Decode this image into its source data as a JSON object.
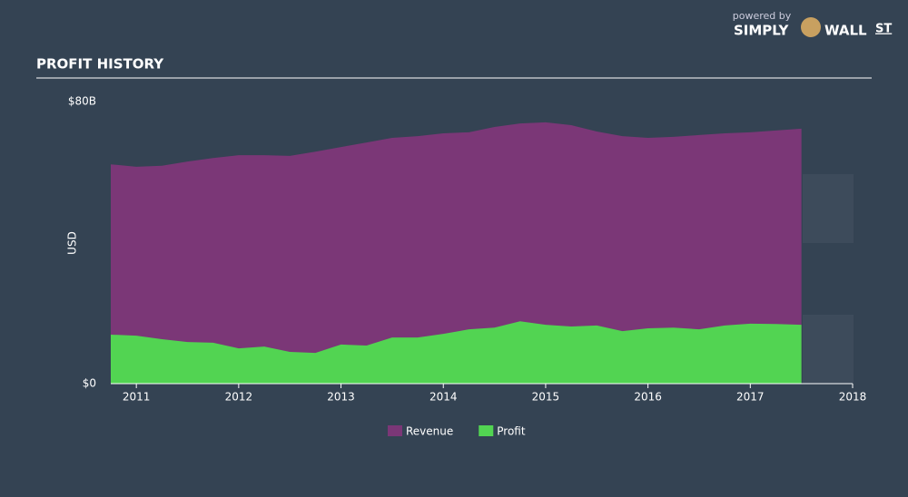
{
  "brand": {
    "powered": "powered by",
    "simply": "SIMPLY",
    "wall": "WALL",
    "st": "ST"
  },
  "chart_data": {
    "type": "area",
    "title": "PROFIT HISTORY",
    "ylabel": "USD",
    "x": [
      2010.75,
      2011.0,
      2011.25,
      2011.5,
      2011.75,
      2012.0,
      2012.25,
      2012.5,
      2012.75,
      2013.0,
      2013.25,
      2013.5,
      2013.75,
      2014.0,
      2014.25,
      2014.5,
      2014.75,
      2015.0,
      2015.25,
      2015.5,
      2015.75,
      2016.0,
      2016.25,
      2016.5,
      2016.75,
      2017.0,
      2017.25,
      2017.5
    ],
    "series": [
      {
        "name": "Revenue",
        "color": "#7b3777",
        "values": [
          62.2,
          61.5,
          61.8,
          63.0,
          64.0,
          64.8,
          64.8,
          64.6,
          65.8,
          67.1,
          68.4,
          69.7,
          70.2,
          71.0,
          71.3,
          72.8,
          73.8,
          74.1,
          73.3,
          71.5,
          70.2,
          69.7,
          70.0,
          70.5,
          71.0,
          71.3,
          71.8,
          72.3
        ]
      },
      {
        "name": "Profit",
        "color": "#52d452",
        "values": [
          13.9,
          13.6,
          12.6,
          11.8,
          11.6,
          10.0,
          10.5,
          9.0,
          8.7,
          11.1,
          10.8,
          13.1,
          13.1,
          14.1,
          15.4,
          15.9,
          17.7,
          16.7,
          16.2,
          16.5,
          14.9,
          15.7,
          15.9,
          15.4,
          16.5,
          17.0,
          16.9,
          16.7
        ]
      }
    ],
    "xlim": [
      2010.75,
      2018
    ],
    "xticks": [
      2011,
      2012,
      2013,
      2014,
      2015,
      2016,
      2017,
      2018
    ],
    "ylim": [
      0,
      80
    ],
    "yticks": [
      {
        "value": 0,
        "label": "$0"
      },
      {
        "value": 80,
        "label": "$80B"
      }
    ]
  }
}
